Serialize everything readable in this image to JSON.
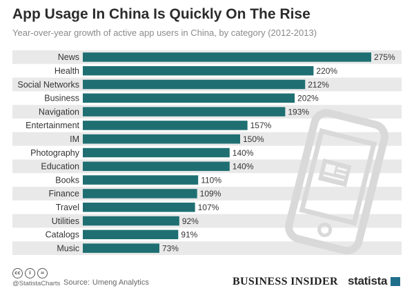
{
  "header": {
    "title": "App Usage In China Is Quickly On The Rise",
    "subtitle": "Year-over-year growth of active app users in China, by category (2012-2013)"
  },
  "chart_data": {
    "type": "bar",
    "orientation": "horizontal",
    "categories": [
      "News",
      "Health",
      "Social Networks",
      "Business",
      "Navigation",
      "Entertainment",
      "IM",
      "Photography",
      "Education",
      "Books",
      "Finance",
      "Travel",
      "Utilities",
      "Catalogs",
      "Music"
    ],
    "values": [
      275,
      220,
      212,
      202,
      193,
      157,
      150,
      140,
      140,
      110,
      109,
      107,
      92,
      91,
      73
    ],
    "value_labels": [
      "275%",
      "220%",
      "212%",
      "202%",
      "193%",
      "157%",
      "150%",
      "140%",
      "140%",
      "110%",
      "109%",
      "107%",
      "92%",
      "91%",
      "73%"
    ],
    "xlim": [
      0,
      275
    ],
    "title": "App Usage In China Is Quickly On The Rise",
    "subtitle": "Year-over-year growth of active app users in China, by category (2012-2013)",
    "grid": false,
    "bar_color": "#1f6f72",
    "stripe_color": "#e9e9e9"
  },
  "footer": {
    "handle": "@StatistaCharts",
    "source_label": "Source:",
    "source": "Umeng Analytics",
    "publisher_logo": "BUSINESS INSIDER",
    "statista_logo": "statista",
    "license_icons": [
      "cc-icon",
      "by-icon",
      "nd-icon"
    ]
  },
  "colors": {
    "bar": "#1f6f72",
    "stripe": "#e9e9e9",
    "title": "#2b2b2b",
    "subtitle": "#8a8a8a",
    "phone_icon": "#dcdcdc"
  }
}
